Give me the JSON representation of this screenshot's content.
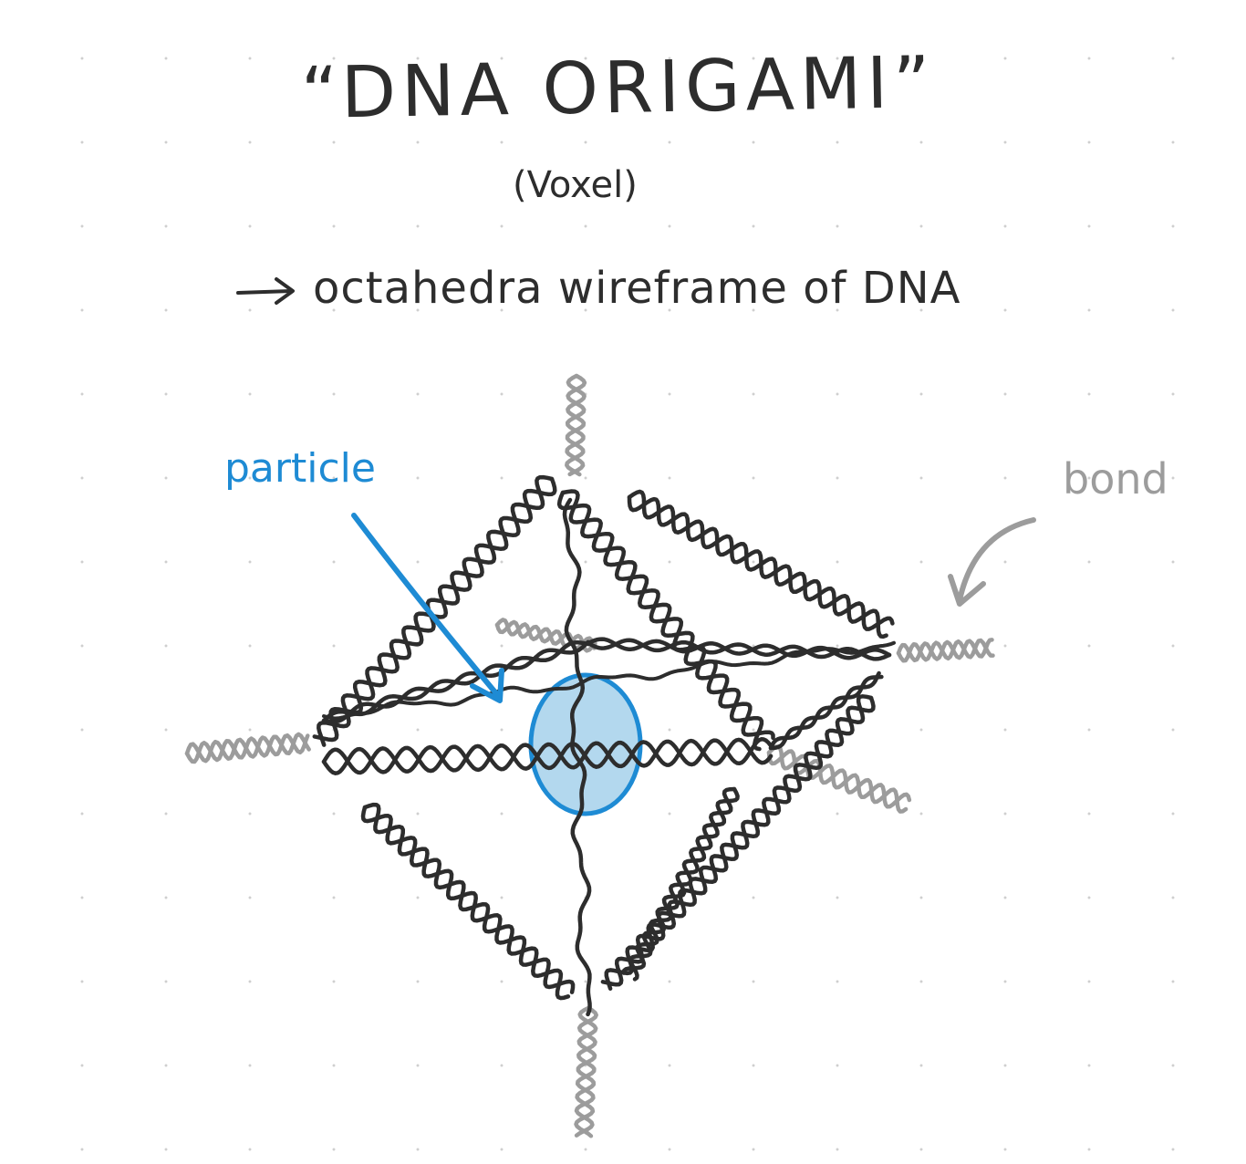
{
  "title": "“DNA ORIGAMI”",
  "subtitle": "(Voxel)",
  "description": "octahedra wireframe of DNA",
  "labels": {
    "particle": "particle",
    "bond": "bond"
  },
  "colors": {
    "ink": "#2d2d2d",
    "particle": "#1e8bd4",
    "particle_fill": "#b3d8ee",
    "bond": "#9c9c9c"
  }
}
